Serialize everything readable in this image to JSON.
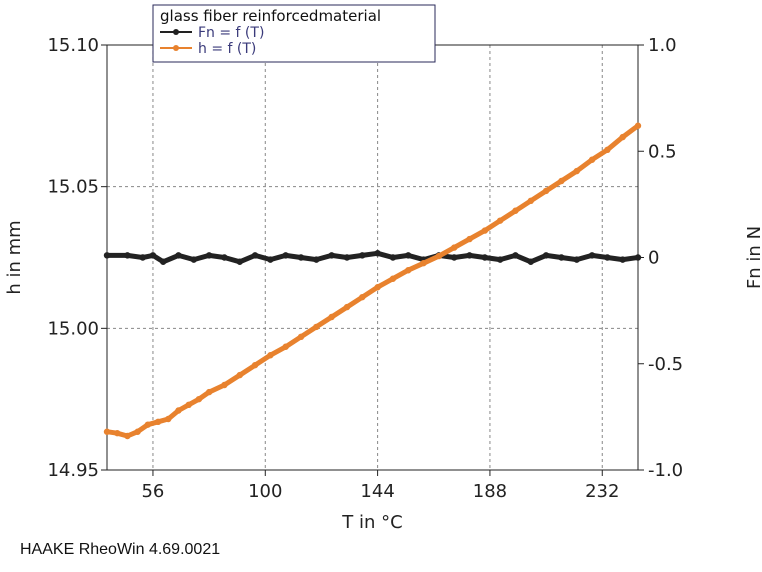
{
  "chart_data": {
    "type": "line",
    "legend_title": "glass fiber reinforcedmaterial",
    "legend_position": "top-center",
    "grid": true,
    "xlabel": "T in °C",
    "ylabel_left": "h in mm",
    "ylabel_right": "Fn in N",
    "xlim": [
      38,
      246
    ],
    "ylim_left": [
      14.95,
      15.1
    ],
    "ylim_right": [
      -1.0,
      1.0
    ],
    "x_ticks": [
      56,
      100,
      144,
      188,
      232
    ],
    "x_tick_labels": [
      "56",
      "100",
      "144",
      "188",
      "232"
    ],
    "y_left_ticks": [
      14.95,
      15.0,
      15.05,
      15.1
    ],
    "y_left_tick_labels": [
      "14.95",
      "15.00",
      "15.05",
      "15.10"
    ],
    "y_right_ticks": [
      -1.0,
      -0.5,
      0,
      0.5,
      1.0
    ],
    "y_right_tick_labels": [
      "-1.0",
      "-0.5",
      "0",
      "0.5",
      "1.0"
    ],
    "series": [
      {
        "name": "Fn = f (T)",
        "axis": "right",
        "color": "#222222",
        "x": [
          38,
          46,
          52,
          56,
          60,
          66,
          72,
          78,
          84,
          90,
          96,
          102,
          108,
          114,
          120,
          126,
          132,
          138,
          144,
          150,
          156,
          162,
          168,
          174,
          180,
          186,
          192,
          198,
          204,
          210,
          216,
          222,
          228,
          234,
          240,
          246
        ],
        "values": [
          0.01,
          0.01,
          0.0,
          0.01,
          -0.02,
          0.01,
          -0.01,
          0.01,
          0.0,
          -0.02,
          0.01,
          -0.01,
          0.01,
          0.0,
          -0.01,
          0.01,
          0.0,
          0.01,
          0.02,
          0.0,
          0.01,
          -0.01,
          0.01,
          0.0,
          0.01,
          0.0,
          -0.01,
          0.01,
          -0.02,
          0.01,
          0.0,
          -0.01,
          0.01,
          0.0,
          -0.01,
          0.0
        ]
      },
      {
        "name": "h = f (T)",
        "axis": "left",
        "color": "#e8822e",
        "x": [
          38,
          42,
          46,
          50,
          54,
          58,
          62,
          66,
          70,
          74,
          78,
          84,
          90,
          96,
          102,
          108,
          114,
          120,
          126,
          132,
          138,
          144,
          150,
          156,
          162,
          168,
          174,
          180,
          186,
          192,
          198,
          204,
          210,
          216,
          222,
          228,
          234,
          240,
          246
        ],
        "values": [
          14.9635,
          14.963,
          14.962,
          14.9635,
          14.966,
          14.967,
          14.968,
          14.971,
          14.973,
          14.975,
          14.9775,
          14.98,
          14.9835,
          14.987,
          14.9905,
          14.9935,
          14.997,
          15.0005,
          15.004,
          15.0075,
          15.011,
          15.0145,
          15.0175,
          15.0205,
          15.023,
          15.0255,
          15.0285,
          15.0315,
          15.0345,
          15.038,
          15.0415,
          15.045,
          15.0485,
          15.052,
          15.0555,
          15.0595,
          15.063,
          15.0675,
          15.0715
        ]
      }
    ]
  },
  "footer": "HAAKE RheoWin 4.69.0021"
}
